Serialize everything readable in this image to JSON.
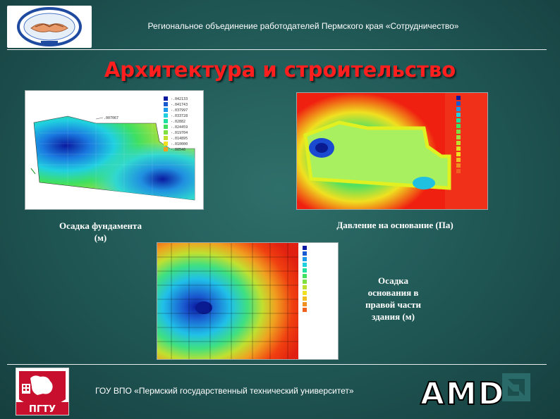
{
  "header": {
    "org_title": "Региональное объединение работодателей Пермского края «Сотрудничество»"
  },
  "slide": {
    "title": "Архитектура и строительство"
  },
  "figures": {
    "foundation_settlement": {
      "caption_line1": "Осадка фундамента",
      "caption_line2": "(м)",
      "legend_values": [
        "-.042133",
        "-.041743",
        "-.037997",
        "-.033728",
        "-.02882",
        "-.024459",
        "-.019704",
        "-.014895",
        "-.010000",
        "-.00540"
      ]
    },
    "base_pressure": {
      "caption": "Давление на основание (Па)"
    },
    "right_settlement": {
      "caption_line1": "Осадка",
      "caption_line2": "основания в",
      "caption_line3": "правой части",
      "caption_line4": "здания (м)"
    }
  },
  "footer": {
    "university": "ГОУ ВПО «Пермский государственный технический университет»",
    "pgtu_label": "ПГТУ",
    "amd_label": "AMD"
  },
  "colors": {
    "title_red": "#ff1f1f",
    "background_teal": "#1f5654"
  }
}
